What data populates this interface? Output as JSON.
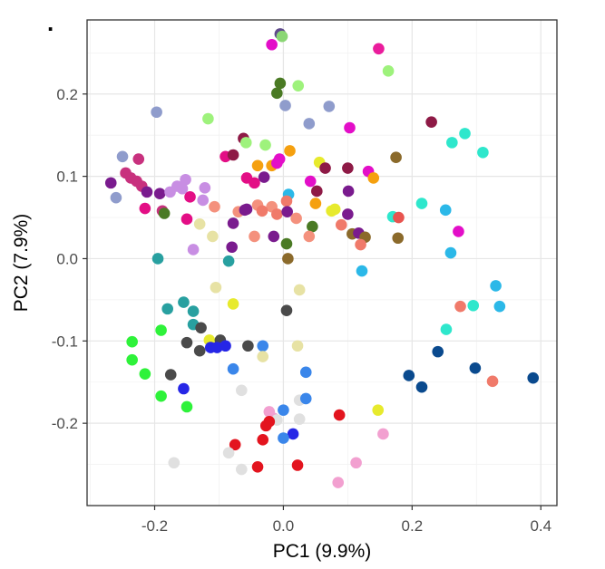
{
  "panel_label": ".",
  "chart_data": {
    "type": "scatter",
    "xlabel": "PC1 (9.9%)",
    "ylabel": "PC2 (7.9%)",
    "xlim": [
      -0.305,
      0.425
    ],
    "ylim": [
      -0.3,
      0.29
    ],
    "x_ticks": [
      -0.2,
      0.0,
      0.2,
      0.4
    ],
    "x_tick_labels": [
      "-0.2",
      "0.0",
      "0.2",
      "0.4"
    ],
    "y_ticks": [
      -0.2,
      -0.1,
      0.0,
      0.1,
      0.2
    ],
    "y_tick_labels": [
      "-0.2",
      "-0.1",
      "0.0",
      "0.1",
      "0.2"
    ],
    "grid": true,
    "theme": "bw",
    "points": [
      {
        "x": -0.005,
        "y": 0.273,
        "color": "#5f4a8b"
      },
      {
        "x": -0.002,
        "y": 0.27,
        "color": "#8ad674"
      },
      {
        "x": -0.018,
        "y": 0.26,
        "color": "#e30ec8"
      },
      {
        "x": 0.148,
        "y": 0.255,
        "color": "#ea1c9c"
      },
      {
        "x": 0.163,
        "y": 0.228,
        "color": "#9ef27c"
      },
      {
        "x": -0.005,
        "y": 0.213,
        "color": "#4a7a24"
      },
      {
        "x": -0.01,
        "y": 0.201,
        "color": "#4a7a24"
      },
      {
        "x": 0.023,
        "y": 0.21,
        "color": "#9ef27c"
      },
      {
        "x": -0.197,
        "y": 0.178,
        "color": "#8f9ccc"
      },
      {
        "x": 0.003,
        "y": 0.186,
        "color": "#8f9ccc"
      },
      {
        "x": 0.071,
        "y": 0.185,
        "color": "#8f9ccc"
      },
      {
        "x": -0.117,
        "y": 0.17,
        "color": "#9ef27c"
      },
      {
        "x": 0.23,
        "y": 0.166,
        "color": "#8e1a46"
      },
      {
        "x": 0.04,
        "y": 0.164,
        "color": "#8f9ccc"
      },
      {
        "x": 0.103,
        "y": 0.159,
        "color": "#e30ec8"
      },
      {
        "x": 0.282,
        "y": 0.152,
        "color": "#2ee7cc"
      },
      {
        "x": 0.262,
        "y": 0.141,
        "color": "#2ee7cc"
      },
      {
        "x": -0.062,
        "y": 0.146,
        "color": "#8e1a46"
      },
      {
        "x": -0.058,
        "y": 0.141,
        "color": "#9ef27c"
      },
      {
        "x": -0.028,
        "y": 0.138,
        "color": "#9ef27c"
      },
      {
        "x": 0.31,
        "y": 0.129,
        "color": "#2ee7cc"
      },
      {
        "x": 0.01,
        "y": 0.131,
        "color": "#f5a00f"
      },
      {
        "x": -0.09,
        "y": 0.124,
        "color": "#e30e85"
      },
      {
        "x": -0.078,
        "y": 0.126,
        "color": "#8e1a46"
      },
      {
        "x": -0.25,
        "y": 0.124,
        "color": "#8f9ccc"
      },
      {
        "x": -0.225,
        "y": 0.121,
        "color": "#c8317e"
      },
      {
        "x": -0.006,
        "y": 0.121,
        "color": "#e30ec8"
      },
      {
        "x": 0.175,
        "y": 0.123,
        "color": "#8b6a2b"
      },
      {
        "x": 0.056,
        "y": 0.117,
        "color": "#e7ea2d"
      },
      {
        "x": -0.04,
        "y": 0.113,
        "color": "#f5a00f"
      },
      {
        "x": -0.018,
        "y": 0.113,
        "color": "#f5a00f"
      },
      {
        "x": -0.01,
        "y": 0.116,
        "color": "#e30ec8"
      },
      {
        "x": 0.065,
        "y": 0.11,
        "color": "#8e1a46"
      },
      {
        "x": 0.1,
        "y": 0.11,
        "color": "#8e1a46"
      },
      {
        "x": 0.132,
        "y": 0.106,
        "color": "#e30ec8"
      },
      {
        "x": 0.14,
        "y": 0.098,
        "color": "#f5a00f"
      },
      {
        "x": -0.245,
        "y": 0.104,
        "color": "#c8317e"
      },
      {
        "x": -0.237,
        "y": 0.098,
        "color": "#c8317e"
      },
      {
        "x": -0.228,
        "y": 0.094,
        "color": "#c8317e"
      },
      {
        "x": -0.268,
        "y": 0.092,
        "color": "#7a1b8e"
      },
      {
        "x": -0.152,
        "y": 0.096,
        "color": "#c88ee3"
      },
      {
        "x": -0.057,
        "y": 0.098,
        "color": "#e30e85"
      },
      {
        "x": -0.03,
        "y": 0.099,
        "color": "#7a1b8e"
      },
      {
        "x": -0.045,
        "y": 0.092,
        "color": "#e30e85"
      },
      {
        "x": 0.042,
        "y": 0.094,
        "color": "#e30ec8"
      },
      {
        "x": -0.22,
        "y": 0.088,
        "color": "#c8317e"
      },
      {
        "x": -0.165,
        "y": 0.088,
        "color": "#c88ee3"
      },
      {
        "x": -0.157,
        "y": 0.085,
        "color": "#c88ee3"
      },
      {
        "x": -0.122,
        "y": 0.086,
        "color": "#c88ee3"
      },
      {
        "x": -0.212,
        "y": 0.081,
        "color": "#7a1b8e"
      },
      {
        "x": -0.192,
        "y": 0.079,
        "color": "#7a1b8e"
      },
      {
        "x": -0.176,
        "y": 0.081,
        "color": "#c88ee3"
      },
      {
        "x": 0.052,
        "y": 0.082,
        "color": "#8e1a46"
      },
      {
        "x": 0.101,
        "y": 0.082,
        "color": "#7a1b8e"
      },
      {
        "x": 0.008,
        "y": 0.078,
        "color": "#2bb8e8"
      },
      {
        "x": -0.26,
        "y": 0.074,
        "color": "#8f9ccc"
      },
      {
        "x": -0.145,
        "y": 0.075,
        "color": "#e30e85"
      },
      {
        "x": -0.125,
        "y": 0.071,
        "color": "#c88ee3"
      },
      {
        "x": 0.005,
        "y": 0.07,
        "color": "#f07a6a"
      },
      {
        "x": 0.05,
        "y": 0.067,
        "color": "#f5a00f"
      },
      {
        "x": 0.215,
        "y": 0.067,
        "color": "#2ee7cc"
      },
      {
        "x": -0.04,
        "y": 0.065,
        "color": "#f4917d"
      },
      {
        "x": -0.018,
        "y": 0.063,
        "color": "#f4917d"
      },
      {
        "x": -0.107,
        "y": 0.063,
        "color": "#f4917d"
      },
      {
        "x": -0.057,
        "y": 0.06,
        "color": "#7a1b8e"
      },
      {
        "x": -0.033,
        "y": 0.058,
        "color": "#f07a6a"
      },
      {
        "x": -0.07,
        "y": 0.057,
        "color": "#f4917d"
      },
      {
        "x": 0.08,
        "y": 0.06,
        "color": "#e7ea2d"
      },
      {
        "x": -0.215,
        "y": 0.061,
        "color": "#e30e85"
      },
      {
        "x": -0.188,
        "y": 0.058,
        "color": "#c8317e"
      },
      {
        "x": -0.185,
        "y": 0.055,
        "color": "#4a7a24"
      },
      {
        "x": -0.06,
        "y": 0.059,
        "color": "#7a1b8e"
      },
      {
        "x": -0.01,
        "y": 0.054,
        "color": "#f07a6a"
      },
      {
        "x": 0.006,
        "y": 0.057,
        "color": "#7a1b8e"
      },
      {
        "x": 0.075,
        "y": 0.058,
        "color": "#e7ea2d"
      },
      {
        "x": 0.252,
        "y": 0.059,
        "color": "#2bb8e8"
      },
      {
        "x": 0.1,
        "y": 0.054,
        "color": "#7a1b8e"
      },
      {
        "x": 0.17,
        "y": 0.051,
        "color": "#2ee7cc"
      },
      {
        "x": 0.179,
        "y": 0.05,
        "color": "#e8544f"
      },
      {
        "x": 0.02,
        "y": 0.049,
        "color": "#f4917d"
      },
      {
        "x": -0.15,
        "y": 0.048,
        "color": "#e30e85"
      },
      {
        "x": -0.13,
        "y": 0.042,
        "color": "#e7e2a4"
      },
      {
        "x": -0.078,
        "y": 0.043,
        "color": "#7a1b8e"
      },
      {
        "x": 0.045,
        "y": 0.039,
        "color": "#4a7a24"
      },
      {
        "x": 0.09,
        "y": 0.041,
        "color": "#f07a6a"
      },
      {
        "x": 0.272,
        "y": 0.033,
        "color": "#e30ec8"
      },
      {
        "x": -0.11,
        "y": 0.027,
        "color": "#e7e2a4"
      },
      {
        "x": -0.045,
        "y": 0.027,
        "color": "#f4917d"
      },
      {
        "x": -0.015,
        "y": 0.027,
        "color": "#7a1b8e"
      },
      {
        "x": 0.04,
        "y": 0.027,
        "color": "#f4917d"
      },
      {
        "x": 0.107,
        "y": 0.03,
        "color": "#8b6a2b"
      },
      {
        "x": 0.117,
        "y": 0.031,
        "color": "#7a1b8e"
      },
      {
        "x": 0.127,
        "y": 0.026,
        "color": "#8b6a2b"
      },
      {
        "x": 0.178,
        "y": 0.025,
        "color": "#8b6a2b"
      },
      {
        "x": 0.005,
        "y": 0.018,
        "color": "#4a7a24"
      },
      {
        "x": -0.08,
        "y": 0.014,
        "color": "#7a1b8e"
      },
      {
        "x": 0.12,
        "y": 0.017,
        "color": "#f07a6a"
      },
      {
        "x": -0.14,
        "y": 0.011,
        "color": "#c88ee3"
      },
      {
        "x": 0.26,
        "y": 0.007,
        "color": "#2bb8e8"
      },
      {
        "x": -0.195,
        "y": 0.0,
        "color": "#28a0a0"
      },
      {
        "x": -0.085,
        "y": -0.003,
        "color": "#28a0a0"
      },
      {
        "x": 0.007,
        "y": 0.0,
        "color": "#8b6a2b"
      },
      {
        "x": 0.122,
        "y": -0.015,
        "color": "#2bb8e8"
      },
      {
        "x": -0.105,
        "y": -0.035,
        "color": "#e7e2a4"
      },
      {
        "x": 0.025,
        "y": -0.038,
        "color": "#e7e2a4"
      },
      {
        "x": 0.33,
        "y": -0.033,
        "color": "#2bb8e8"
      },
      {
        "x": -0.078,
        "y": -0.055,
        "color": "#e7ea2d"
      },
      {
        "x": -0.155,
        "y": -0.053,
        "color": "#28a0a0"
      },
      {
        "x": 0.275,
        "y": -0.058,
        "color": "#f07a6a"
      },
      {
        "x": 0.295,
        "y": -0.057,
        "color": "#2ee7cc"
      },
      {
        "x": 0.336,
        "y": -0.058,
        "color": "#2bb8e8"
      },
      {
        "x": -0.18,
        "y": -0.061,
        "color": "#28a0a0"
      },
      {
        "x": -0.14,
        "y": -0.064,
        "color": "#28a0a0"
      },
      {
        "x": 0.005,
        "y": -0.063,
        "color": "#4a4a4a"
      },
      {
        "x": -0.14,
        "y": -0.08,
        "color": "#28a0a0"
      },
      {
        "x": -0.128,
        "y": -0.084,
        "color": "#4a4a4a"
      },
      {
        "x": -0.19,
        "y": -0.087,
        "color": "#2ef23a"
      },
      {
        "x": 0.253,
        "y": -0.086,
        "color": "#2ee7cc"
      },
      {
        "x": -0.115,
        "y": -0.099,
        "color": "#e7ea2d"
      },
      {
        "x": -0.098,
        "y": -0.099,
        "color": "#4a4a4a"
      },
      {
        "x": -0.235,
        "y": -0.101,
        "color": "#2ef23a"
      },
      {
        "x": -0.15,
        "y": -0.102,
        "color": "#4a4a4a"
      },
      {
        "x": -0.113,
        "y": -0.108,
        "color": "#2626e6"
      },
      {
        "x": -0.103,
        "y": -0.108,
        "color": "#2626e6"
      },
      {
        "x": -0.09,
        "y": -0.106,
        "color": "#2626e6"
      },
      {
        "x": -0.055,
        "y": -0.106,
        "color": "#4a4a4a"
      },
      {
        "x": -0.032,
        "y": -0.106,
        "color": "#3a86ea"
      },
      {
        "x": 0.022,
        "y": -0.106,
        "color": "#e7e2a4"
      },
      {
        "x": -0.13,
        "y": -0.112,
        "color": "#4a4a4a"
      },
      {
        "x": 0.24,
        "y": -0.113,
        "color": "#0a4a8e"
      },
      {
        "x": -0.032,
        "y": -0.119,
        "color": "#e7e2a4"
      },
      {
        "x": -0.235,
        "y": -0.123,
        "color": "#2ef23a"
      },
      {
        "x": 0.298,
        "y": -0.133,
        "color": "#0a4a8e"
      },
      {
        "x": -0.078,
        "y": -0.134,
        "color": "#3a86ea"
      },
      {
        "x": -0.215,
        "y": -0.14,
        "color": "#2ef23a"
      },
      {
        "x": -0.175,
        "y": -0.141,
        "color": "#4a4a4a"
      },
      {
        "x": 0.035,
        "y": -0.138,
        "color": "#3a86ea"
      },
      {
        "x": 0.195,
        "y": -0.142,
        "color": "#0a4a8e"
      },
      {
        "x": 0.388,
        "y": -0.145,
        "color": "#0a4a8e"
      },
      {
        "x": 0.325,
        "y": -0.149,
        "color": "#f07a6a"
      },
      {
        "x": -0.155,
        "y": -0.158,
        "color": "#2626e6"
      },
      {
        "x": 0.215,
        "y": -0.156,
        "color": "#0a4a8e"
      },
      {
        "x": -0.065,
        "y": -0.16,
        "color": "#e0e0e0"
      },
      {
        "x": -0.19,
        "y": -0.167,
        "color": "#2ef23a"
      },
      {
        "x": 0.025,
        "y": -0.172,
        "color": "#e0e0e0"
      },
      {
        "x": 0.035,
        "y": -0.17,
        "color": "#3a86ea"
      },
      {
        "x": -0.15,
        "y": -0.18,
        "color": "#2ef23a"
      },
      {
        "x": -0.022,
        "y": -0.186,
        "color": "#f2a0d0"
      },
      {
        "x": 0.0,
        "y": -0.184,
        "color": "#3a86ea"
      },
      {
        "x": 0.147,
        "y": -0.184,
        "color": "#e7ea2d"
      },
      {
        "x": 0.087,
        "y": -0.19,
        "color": "#e3141e"
      },
      {
        "x": -0.015,
        "y": -0.194,
        "color": "#f2a0d0"
      },
      {
        "x": -0.01,
        "y": -0.196,
        "color": "#e0e0e0"
      },
      {
        "x": -0.022,
        "y": -0.198,
        "color": "#e3141e"
      },
      {
        "x": 0.025,
        "y": -0.195,
        "color": "#e0e0e0"
      },
      {
        "x": -0.027,
        "y": -0.203,
        "color": "#e3141e"
      },
      {
        "x": 0.155,
        "y": -0.213,
        "color": "#f2a0d0"
      },
      {
        "x": 0.015,
        "y": -0.213,
        "color": "#2626e6"
      },
      {
        "x": 0.0,
        "y": -0.218,
        "color": "#3a86ea"
      },
      {
        "x": -0.032,
        "y": -0.22,
        "color": "#e3141e"
      },
      {
        "x": -0.075,
        "y": -0.226,
        "color": "#e3141e"
      },
      {
        "x": -0.085,
        "y": -0.236,
        "color": "#e0e0e0"
      },
      {
        "x": -0.17,
        "y": -0.248,
        "color": "#e0e0e0"
      },
      {
        "x": 0.113,
        "y": -0.248,
        "color": "#f2a0d0"
      },
      {
        "x": -0.04,
        "y": -0.253,
        "color": "#e3141e"
      },
      {
        "x": 0.022,
        "y": -0.251,
        "color": "#e3141e"
      },
      {
        "x": -0.065,
        "y": -0.256,
        "color": "#e0e0e0"
      },
      {
        "x": 0.085,
        "y": -0.272,
        "color": "#f2a0d0"
      }
    ]
  }
}
